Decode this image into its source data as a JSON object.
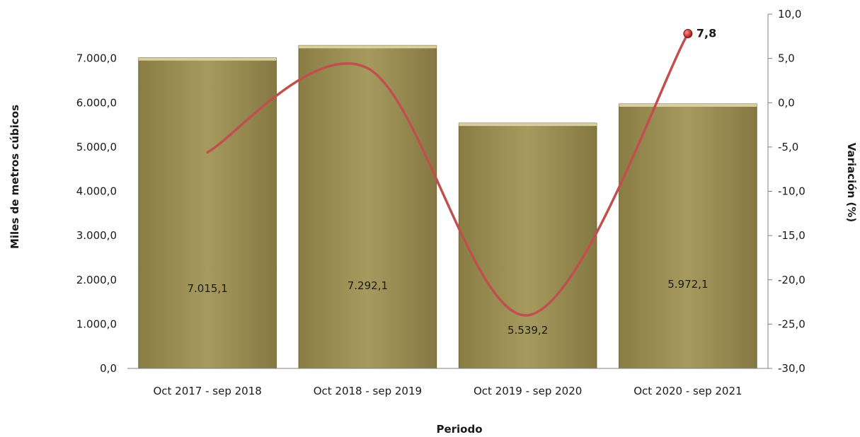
{
  "chart_data": {
    "type": "bar",
    "categories": [
      "Oct 2017 - sep 2018",
      "Oct 2018 - sep 2019",
      "Oct 2019 - sep 2020",
      "Oct 2020 - sep 2021"
    ],
    "series": [
      {
        "type": "bar",
        "axis": "left",
        "values": [
          7015.1,
          7292.1,
          5539.2,
          5972.1
        ],
        "value_labels": [
          "7.015,1",
          "7.292,1",
          "5.539,2",
          "5.972,1"
        ],
        "color": "#a09258"
      },
      {
        "type": "line",
        "axis": "right",
        "smooth": true,
        "values": [
          -5.6,
          3.9,
          -24.0,
          7.8
        ],
        "color": "#c0504d",
        "labeled_point": {
          "index": 3,
          "label": "7,8"
        }
      }
    ],
    "xlabel": "Periodo",
    "ylabel": "Miles de metros cúbicos",
    "y2label": "Variación (%)",
    "ylim": [
      0,
      8000
    ],
    "y2lim": [
      -30,
      10
    ],
    "yticks": [
      "0,0",
      "1.000,0",
      "2.000,0",
      "3.000,0",
      "4.000,0",
      "5.000,0",
      "6.000,0",
      "7.000,0"
    ],
    "y2ticks": [
      "-30,0",
      "-25,0",
      "-20,0",
      "-15,0",
      "-10,0",
      "-5,0",
      "0,0",
      "5,0",
      "10,0"
    ],
    "grid": false,
    "legend": "none"
  }
}
